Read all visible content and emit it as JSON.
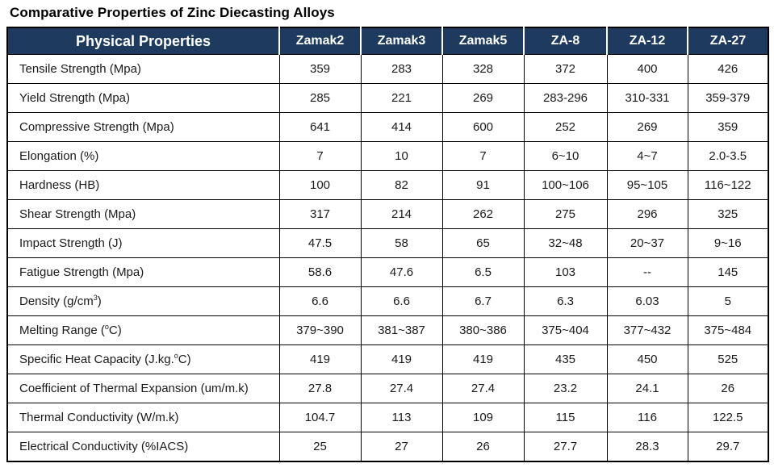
{
  "page": {
    "title": "Comparative Properties of Zinc Diecasting Alloys"
  },
  "colors": {
    "header_bg": "#1e3a5e",
    "header_text": "#ffffff",
    "border": "#000000",
    "body_text": "#1a1a1a"
  },
  "table": {
    "header": [
      "Physical Properties",
      "Zamak2",
      "Zamak3",
      "Zamak5",
      "ZA-8",
      "ZA-12",
      "ZA-27"
    ],
    "rows": [
      {
        "label_parts": [
          {
            "text": "Tensile Strength (Mpa)"
          }
        ],
        "values": [
          "359",
          "283",
          "328",
          "372",
          "400",
          "426"
        ]
      },
      {
        "label_parts": [
          {
            "text": "Yield Strength (Mpa)"
          }
        ],
        "values": [
          "285",
          "221",
          "269",
          "283-296",
          "310-331",
          "359-379"
        ]
      },
      {
        "label_parts": [
          {
            "text": "Compressive Strength (Mpa)"
          }
        ],
        "values": [
          "641",
          "414",
          "600",
          "252",
          "269",
          "359"
        ]
      },
      {
        "label_parts": [
          {
            "text": "Elongation (%)"
          }
        ],
        "values": [
          "7",
          "10",
          "7",
          "6~10",
          "4~7",
          "2.0-3.5"
        ]
      },
      {
        "label_parts": [
          {
            "text": "Hardness (HB)"
          }
        ],
        "values": [
          "100",
          "82",
          "91",
          "100~106",
          "95~105",
          "116~122"
        ]
      },
      {
        "label_parts": [
          {
            "text": "Shear Strength (Mpa)"
          }
        ],
        "values": [
          "317",
          "214",
          "262",
          "275",
          "296",
          "325"
        ]
      },
      {
        "label_parts": [
          {
            "text": "Impact Strength (J)"
          }
        ],
        "values": [
          "47.5",
          "58",
          "65",
          "32~48",
          "20~37",
          "9~16"
        ]
      },
      {
        "label_parts": [
          {
            "text": "Fatigue Strength (Mpa)"
          }
        ],
        "values": [
          "58.6",
          "47.6",
          "6.5",
          "103",
          "--",
          "145"
        ]
      },
      {
        "label_parts": [
          {
            "text": "Density (g/cm"
          },
          {
            "text": "3",
            "sup": true
          },
          {
            "text": ")"
          }
        ],
        "values": [
          "6.6",
          "6.6",
          "6.7",
          "6.3",
          "6.03",
          "5"
        ]
      },
      {
        "label_parts": [
          {
            "text": "Melting Range ("
          },
          {
            "text": "o",
            "sup": true
          },
          {
            "text": "C)"
          }
        ],
        "values": [
          "379~390",
          "381~387",
          "380~386",
          "375~404",
          "377~432",
          "375~484"
        ]
      },
      {
        "label_parts": [
          {
            "text": "Specific Heat Capacity (J.kg."
          },
          {
            "text": "o",
            "sup": true
          },
          {
            "text": "C)"
          }
        ],
        "values": [
          "419",
          "419",
          "419",
          "435",
          "450",
          "525"
        ]
      },
      {
        "label_parts": [
          {
            "text": "Coefficient of Thermal Expansion (um/m.k)"
          }
        ],
        "values": [
          "27.8",
          "27.4",
          "27.4",
          "23.2",
          "24.1",
          "26"
        ]
      },
      {
        "label_parts": [
          {
            "text": "Thermal Conductivity (W/m.k)"
          }
        ],
        "values": [
          "104.7",
          "113",
          "109",
          "115",
          "116",
          "122.5"
        ]
      },
      {
        "label_parts": [
          {
            "text": "Electrical Conductivity (%IACS)"
          }
        ],
        "values": [
          "25",
          "27",
          "26",
          "27.7",
          "28.3",
          "29.7"
        ]
      }
    ]
  }
}
